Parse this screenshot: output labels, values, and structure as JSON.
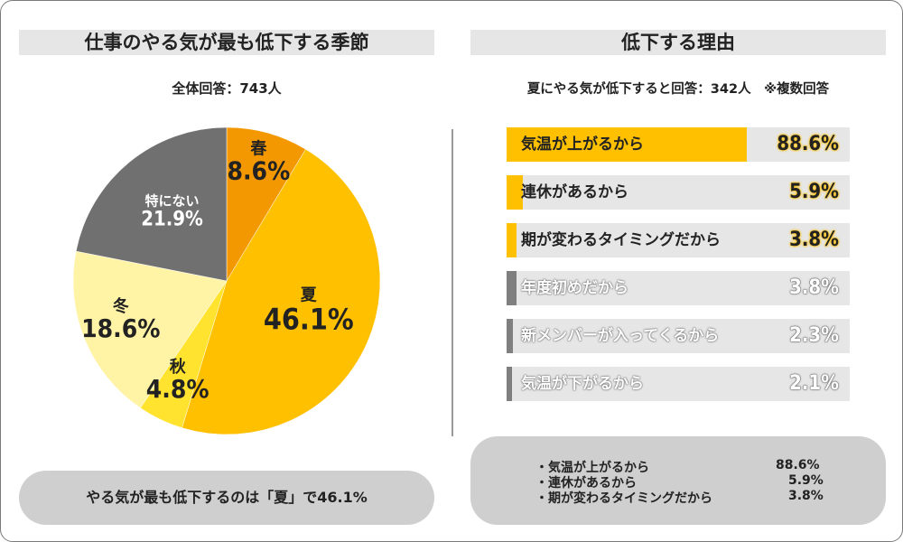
{
  "left": {
    "title": "仕事のやる気が最も低下する季節",
    "subtitle": "全体回答：743人",
    "callout": "やる気が最も低下するのは「夏」で46.1%"
  },
  "right": {
    "title": "低下する理由",
    "subtitle": "夏にやる気が低下すると回答：342人　※複数回答",
    "summary": [
      {
        "label": "・気温が上がるから",
        "value": "88.6%"
      },
      {
        "label": "・連休があるから",
        "value": "5.9%"
      },
      {
        "label": "・期が変わるタイミングだから",
        "value": "3.8%"
      }
    ]
  },
  "chart_data": [
    {
      "type": "pie",
      "title": "仕事のやる気が最も低下する季節",
      "categories": [
        "春",
        "夏",
        "秋",
        "冬",
        "特にない"
      ],
      "values": [
        8.6,
        46.1,
        4.8,
        18.6,
        21.9
      ],
      "value_labels": [
        "8.6%",
        "46.1%",
        "4.8%",
        "18.6%",
        "21.9%"
      ],
      "colors": [
        "#f39800",
        "#ffc000",
        "#ffe32e",
        "#fff3a6",
        "#707070"
      ],
      "start": "top, clockwise"
    },
    {
      "type": "bar",
      "orientation": "horizontal",
      "title": "低下する理由",
      "categories": [
        "気温が上がるから",
        "連休があるから",
        "期が変わるタイミングだから",
        "年度初めだから",
        "新メンバーが入ってくるから",
        "気温が下がるから"
      ],
      "values": [
        88.6,
        5.9,
        3.8,
        3.8,
        2.3,
        2.1
      ],
      "value_labels": [
        "88.6%",
        "5.9%",
        "3.8%",
        "3.8%",
        "2.3%",
        "2.1%"
      ],
      "highlight": [
        true,
        true,
        true,
        false,
        false,
        false
      ],
      "colors": {
        "highlight": "#ffc000",
        "muted": "#7f7f7f",
        "track": "#e6e6e6"
      },
      "xlim": [
        0,
        100
      ]
    }
  ]
}
